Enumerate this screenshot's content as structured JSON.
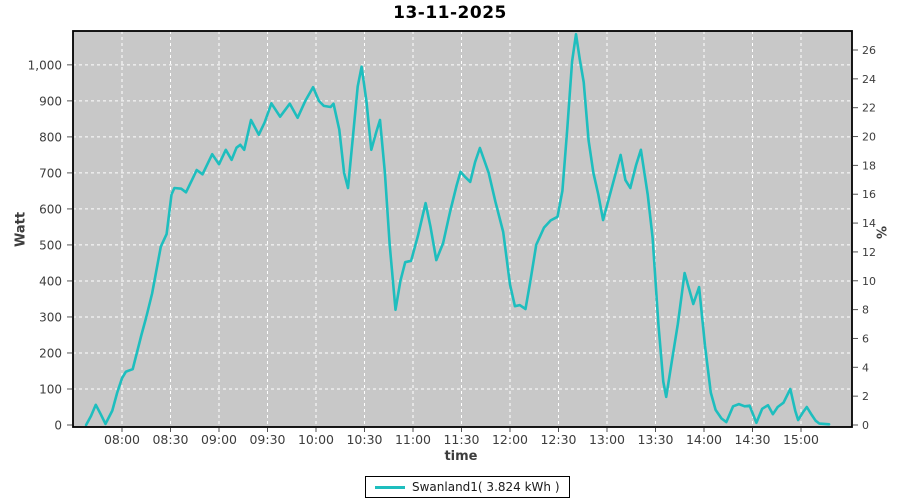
{
  "title": "13-11-2025",
  "legend": {
    "label": "Swanland1( 3.824 kWh )"
  },
  "colors": {
    "line": "#1ebebe",
    "plot_bg": "#c8c8c8",
    "grid": "#ffffff",
    "border": "#000000",
    "tick_text": "#3d3d3d",
    "tick_mark": "#555555"
  },
  "chart_data": {
    "type": "line",
    "title": "13-11-2025",
    "xlabel": "time",
    "ylabel_left": "Watt",
    "ylabel_right": "%",
    "grid": true,
    "legend_position": "bottom-center",
    "x_axis": {
      "tick_labels": [
        "08:00",
        "08:30",
        "09:00",
        "09:30",
        "10:00",
        "10:30",
        "11:00",
        "11:30",
        "12:00",
        "12:30",
        "13:00",
        "13:30",
        "14:00",
        "14:30",
        "15:00"
      ],
      "tick_hours": [
        8,
        8.5,
        9,
        9.5,
        10,
        10.5,
        11,
        11.5,
        12,
        12.5,
        13,
        13.5,
        14,
        14.5,
        15
      ],
      "range_hours": [
        7.5,
        15.53
      ]
    },
    "y_left": {
      "tick_labels": [
        "0",
        "100",
        "200",
        "300",
        "400",
        "500",
        "600",
        "700",
        "800",
        "900",
        "1,000"
      ],
      "tick_values": [
        0,
        100,
        200,
        300,
        400,
        500,
        600,
        700,
        800,
        900,
        1000
      ],
      "range": [
        0,
        1094
      ]
    },
    "y_right": {
      "tick_labels": [
        "0",
        "2",
        "4",
        "6",
        "8",
        "10",
        "12",
        "14",
        "16",
        "18",
        "20",
        "22",
        "24",
        "26"
      ],
      "tick_values": [
        0,
        2,
        4,
        6,
        8,
        10,
        12,
        14,
        16,
        18,
        20,
        22,
        24,
        26
      ],
      "range": [
        0,
        27.3
      ]
    },
    "series": [
      {
        "name": "Swanland1",
        "energy_kwh": 3.824,
        "points_time_hours_watts": [
          [
            7.63,
            0
          ],
          [
            7.68,
            25
          ],
          [
            7.73,
            56
          ],
          [
            7.78,
            30
          ],
          [
            7.83,
            3
          ],
          [
            7.9,
            40
          ],
          [
            7.95,
            90
          ],
          [
            8.0,
            130
          ],
          [
            8.04,
            148
          ],
          [
            8.11,
            155
          ],
          [
            8.2,
            250
          ],
          [
            8.25,
            300
          ],
          [
            8.31,
            365
          ],
          [
            8.4,
            495
          ],
          [
            8.46,
            530
          ],
          [
            8.51,
            640
          ],
          [
            8.54,
            658
          ],
          [
            8.61,
            656
          ],
          [
            8.66,
            646
          ],
          [
            8.73,
            685
          ],
          [
            8.77,
            708
          ],
          [
            8.83,
            696
          ],
          [
            8.93,
            752
          ],
          [
            9.0,
            724
          ],
          [
            9.07,
            764
          ],
          [
            9.13,
            736
          ],
          [
            9.18,
            770
          ],
          [
            9.22,
            778
          ],
          [
            9.26,
            764
          ],
          [
            9.33,
            847
          ],
          [
            9.41,
            806
          ],
          [
            9.47,
            840
          ],
          [
            9.54,
            893
          ],
          [
            9.63,
            856
          ],
          [
            9.73,
            892
          ],
          [
            9.81,
            853
          ],
          [
            9.89,
            900
          ],
          [
            9.97,
            938
          ],
          [
            10.03,
            900
          ],
          [
            10.08,
            886
          ],
          [
            10.15,
            883
          ],
          [
            10.18,
            892
          ],
          [
            10.24,
            820
          ],
          [
            10.29,
            700
          ],
          [
            10.33,
            658
          ],
          [
            10.38,
            800
          ],
          [
            10.43,
            940
          ],
          [
            10.47,
            995
          ],
          [
            10.52,
            900
          ],
          [
            10.57,
            764
          ],
          [
            10.62,
            812
          ],
          [
            10.66,
            847
          ],
          [
            10.71,
            700
          ],
          [
            10.76,
            500
          ],
          [
            10.82,
            320
          ],
          [
            10.87,
            400
          ],
          [
            10.92,
            452
          ],
          [
            10.98,
            456
          ],
          [
            11.05,
            525
          ],
          [
            11.13,
            616
          ],
          [
            11.18,
            550
          ],
          [
            11.24,
            458
          ],
          [
            11.31,
            505
          ],
          [
            11.38,
            590
          ],
          [
            11.45,
            665
          ],
          [
            11.49,
            703
          ],
          [
            11.54,
            688
          ],
          [
            11.59,
            675
          ],
          [
            11.64,
            730
          ],
          [
            11.69,
            769
          ],
          [
            11.78,
            700
          ],
          [
            11.85,
            620
          ],
          [
            11.93,
            536
          ],
          [
            12.0,
            390
          ],
          [
            12.05,
            330
          ],
          [
            12.1,
            333
          ],
          [
            12.16,
            322
          ],
          [
            12.21,
            400
          ],
          [
            12.27,
            500
          ],
          [
            12.35,
            548
          ],
          [
            12.42,
            568
          ],
          [
            12.49,
            578
          ],
          [
            12.54,
            650
          ],
          [
            12.59,
            820
          ],
          [
            12.64,
            1010
          ],
          [
            12.68,
            1085
          ],
          [
            12.72,
            1015
          ],
          [
            12.76,
            952
          ],
          [
            12.81,
            790
          ],
          [
            12.86,
            700
          ],
          [
            12.91,
            640
          ],
          [
            12.96,
            569
          ],
          [
            13.05,
            660
          ],
          [
            13.14,
            750
          ],
          [
            13.19,
            680
          ],
          [
            13.24,
            658
          ],
          [
            13.3,
            722
          ],
          [
            13.35,
            764
          ],
          [
            13.42,
            640
          ],
          [
            13.47,
            520
          ],
          [
            13.53,
            280
          ],
          [
            13.58,
            120
          ],
          [
            13.61,
            78
          ],
          [
            13.67,
            180
          ],
          [
            13.73,
            280
          ],
          [
            13.8,
            422
          ],
          [
            13.89,
            336
          ],
          [
            13.95,
            383
          ],
          [
            14.01,
            220
          ],
          [
            14.07,
            90
          ],
          [
            14.12,
            42
          ],
          [
            14.18,
            18
          ],
          [
            14.23,
            8
          ],
          [
            14.3,
            52
          ],
          [
            14.36,
            58
          ],
          [
            14.42,
            52
          ],
          [
            14.47,
            54
          ],
          [
            14.54,
            6
          ],
          [
            14.6,
            45
          ],
          [
            14.66,
            55
          ],
          [
            14.71,
            30
          ],
          [
            14.76,
            50
          ],
          [
            14.82,
            62
          ],
          [
            14.89,
            100
          ],
          [
            14.94,
            40
          ],
          [
            14.97,
            14
          ],
          [
            15.02,
            35
          ],
          [
            15.06,
            50
          ],
          [
            15.11,
            28
          ],
          [
            15.15,
            12
          ],
          [
            15.19,
            4
          ],
          [
            15.24,
            3
          ],
          [
            15.29,
            2
          ]
        ]
      }
    ]
  }
}
